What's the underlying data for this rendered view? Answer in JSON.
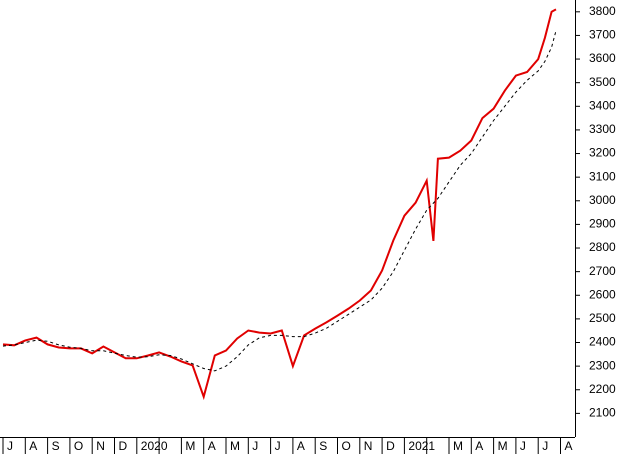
{
  "chart_data": {
    "type": "line",
    "categories": [
      "J",
      "A",
      "S",
      "O",
      "N",
      "D",
      "2020",
      null,
      "M",
      "A",
      "M",
      "J",
      "J",
      "A",
      "S",
      "O",
      "N",
      "D",
      "2021",
      null,
      "M",
      "A",
      "M",
      "J",
      "J",
      "A"
    ],
    "x": [
      0,
      0.5,
      1,
      1.5,
      2,
      2.5,
      3,
      3.5,
      4,
      4.5,
      5,
      5.5,
      6,
      6.5,
      7,
      7.5,
      8,
      8.5,
      9,
      9.5,
      10,
      10.5,
      11,
      11.5,
      12,
      12.5,
      13,
      13.5,
      14,
      14.5,
      15,
      15.5,
      16,
      16.5,
      17,
      17.5,
      18,
      18.5,
      19,
      19.3,
      19.5,
      20,
      20.5,
      21,
      21.5,
      22,
      22.5,
      23,
      23.5,
      24,
      24.3,
      24.6,
      24.8
    ],
    "series": [
      {
        "color": "#e00000",
        "dash": false,
        "values": [
          2392,
          2388,
          2409,
          2421,
          2392,
          2379,
          2375,
          2375,
          2354,
          2383,
          2358,
          2333,
          2333,
          2345,
          2358,
          2341,
          2320,
          2303,
          2170,
          2345,
          2366,
          2417,
          2451,
          2442,
          2438,
          2451,
          2300,
          2430,
          2459,
          2485,
          2514,
          2544,
          2578,
          2620,
          2705,
          2832,
          2937,
          2992,
          3085,
          2830,
          3178,
          3183,
          3212,
          3255,
          3350,
          3390,
          3466,
          3530,
          3545,
          3600,
          3690,
          3800,
          3810
        ]
      },
      {
        "color": "#000000",
        "dash": true,
        "values": [
          2385,
          2390,
          2400,
          2410,
          2405,
          2390,
          2380,
          2375,
          2365,
          2365,
          2355,
          2345,
          2338,
          2340,
          2348,
          2345,
          2330,
          2310,
          2290,
          2280,
          2300,
          2340,
          2390,
          2420,
          2430,
          2430,
          2425,
          2425,
          2440,
          2460,
          2490,
          2520,
          2550,
          2580,
          2630,
          2700,
          2790,
          2880,
          2960,
          2990,
          3010,
          3080,
          3150,
          3200,
          3270,
          3340,
          3400,
          3460,
          3510,
          3550,
          3590,
          3650,
          3720
        ]
      }
    ],
    "ylim": [
      2000,
      3850
    ],
    "yticks": [
      2100,
      2200,
      2300,
      2400,
      2500,
      2600,
      2700,
      2800,
      2900,
      3000,
      3100,
      3200,
      3300,
      3400,
      3500,
      3600,
      3700,
      3800
    ]
  }
}
